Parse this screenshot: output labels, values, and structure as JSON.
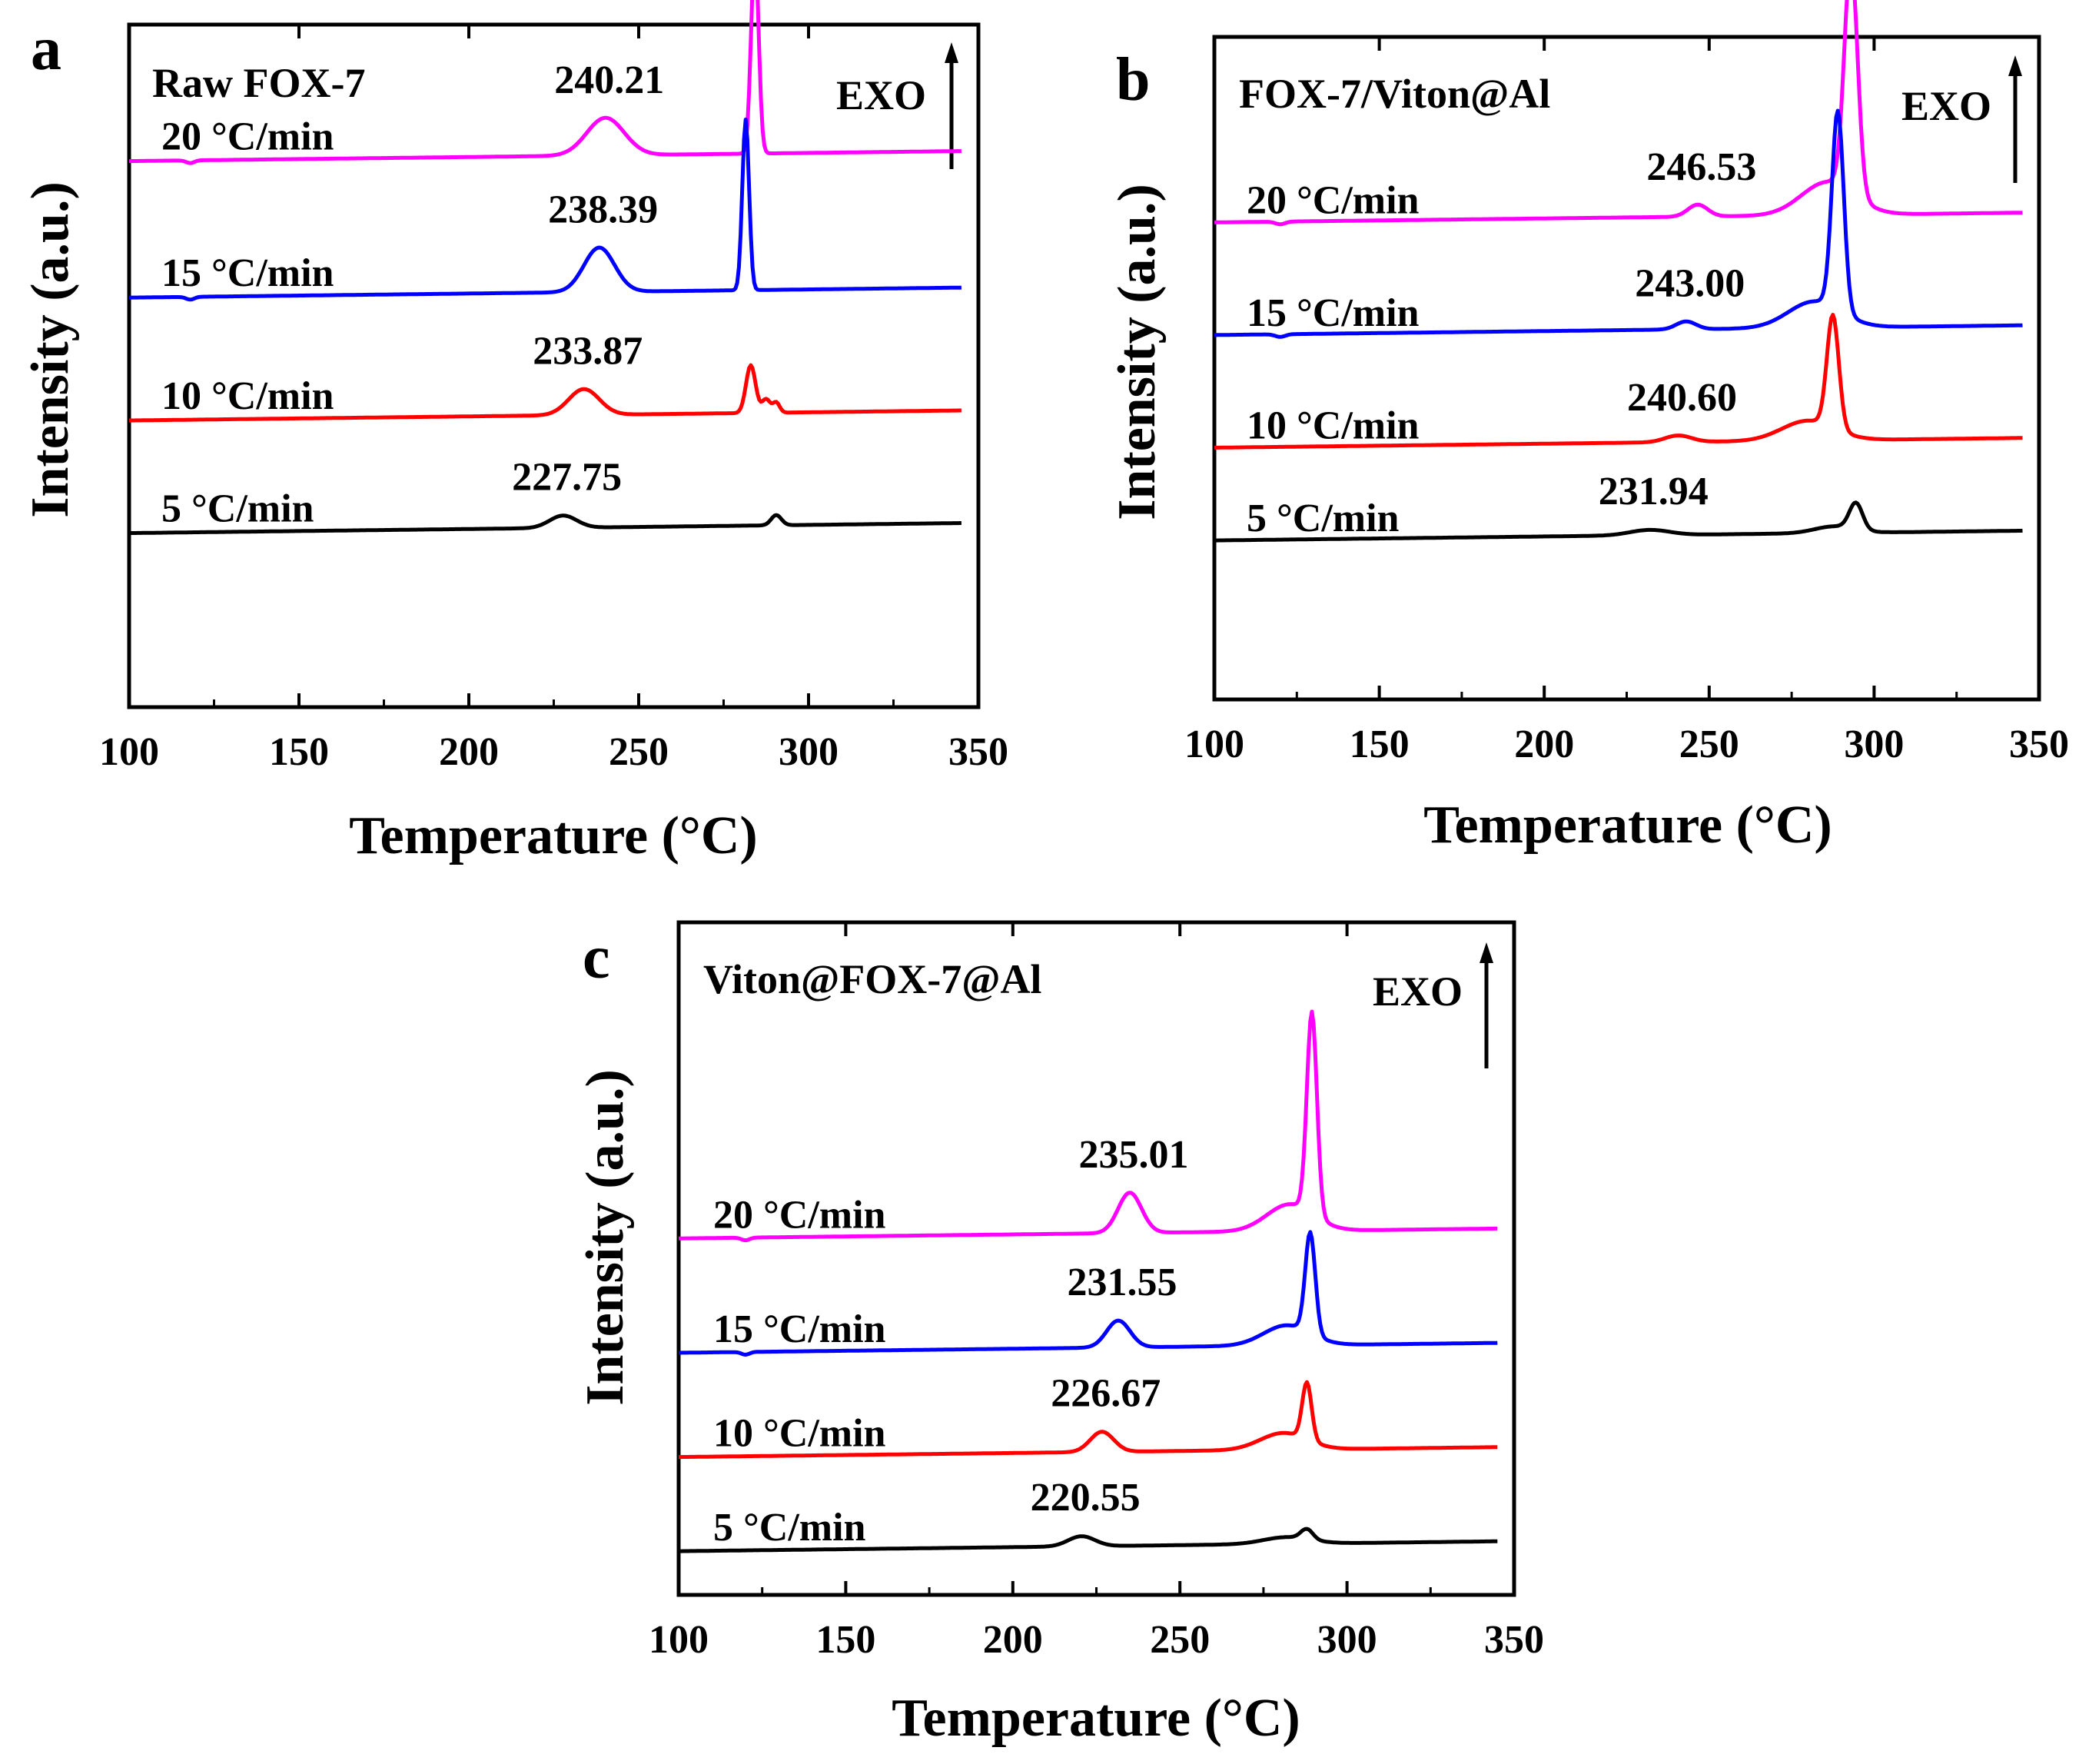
{
  "figure": {
    "exo_label": "EXO",
    "xlabel": "Temperature (°C)",
    "ylabel": "Intensity (a.u.)",
    "series_colors": {
      "5": "#000000",
      "10": "#ff0000",
      "15": "#0000ff",
      "20": "#ff00ff"
    }
  },
  "chart_data": [
    {
      "type": "line",
      "panel": "a",
      "title": "Raw FOX-7",
      "xlabel": "Temperature (°C)",
      "ylabel": "Intensity (a.u.)",
      "xlim": [
        100,
        350
      ],
      "xticks": [
        "100",
        "150",
        "200",
        "250",
        "300",
        "350"
      ],
      "series": [
        {
          "rate_key": "20",
          "name": "20 °C/min",
          "peak_label": "240.21",
          "peak_temp": 240.21,
          "baseline": 0.8,
          "features": [
            [
              118,
              -0.004,
              1.2
            ],
            [
              240.21,
              0.055,
              5.5
            ],
            [
              284.2,
              0.3,
              1.1
            ]
          ]
        },
        {
          "rate_key": "15",
          "name": "15 °C/min",
          "peak_label": "238.39",
          "peak_temp": 238.39,
          "baseline": 0.6,
          "features": [
            [
              118,
              -0.004,
              1.2
            ],
            [
              238.39,
              0.065,
              4.5
            ],
            [
              281.5,
              0.25,
              1.0
            ]
          ]
        },
        {
          "rate_key": "10",
          "name": "10 °C/min",
          "peak_label": "233.87",
          "peak_temp": 233.87,
          "baseline": 0.42,
          "features": [
            [
              233.87,
              0.038,
              4.5
            ],
            [
              283.0,
              0.07,
              1.4
            ],
            [
              287.5,
              0.02,
              1.2
            ],
            [
              290.5,
              0.015,
              1.0
            ]
          ]
        },
        {
          "rate_key": "5",
          "name": "5 °C/min",
          "peak_label": "227.75",
          "peak_temp": 227.75,
          "baseline": 0.255,
          "features": [
            [
              227.75,
              0.018,
              4.0
            ],
            [
              290.5,
              0.015,
              1.5
            ]
          ]
        }
      ]
    },
    {
      "type": "line",
      "panel": "b",
      "title": "FOX-7/Viton@Al",
      "xlabel": "Temperature (°C)",
      "ylabel": "Intensity (a.u.)",
      "xlim": [
        100,
        350
      ],
      "xticks": [
        "100",
        "150",
        "200",
        "250",
        "300",
        "350"
      ],
      "series": [
        {
          "rate_key": "20",
          "name": "20 °C/min",
          "peak_label": "246.53",
          "peak_temp": 246.53,
          "baseline": 0.72,
          "features": [
            [
              120,
              -0.004,
              1.5
            ],
            [
              246.53,
              0.018,
              3.0
            ],
            [
              293.0,
              0.35,
              2.0
            ],
            [
              286,
              0.05,
              8.0
            ]
          ]
        },
        {
          "rate_key": "15",
          "name": "15 °C/min",
          "peak_label": "243.00",
          "peak_temp": 243.0,
          "baseline": 0.55,
          "features": [
            [
              120,
              -0.004,
              1.5
            ],
            [
              243.0,
              0.012,
              3.0
            ],
            [
              289.0,
              0.3,
              1.8
            ],
            [
              282,
              0.04,
              8.0
            ]
          ]
        },
        {
          "rate_key": "10",
          "name": "10 °C/min",
          "peak_label": "240.60",
          "peak_temp": 240.6,
          "baseline": 0.38,
          "features": [
            [
              240.6,
              0.01,
              4.0
            ],
            [
              287.5,
              0.17,
              1.8
            ],
            [
              280,
              0.03,
              8.0
            ]
          ]
        },
        {
          "rate_key": "5",
          "name": "5 °C/min",
          "peak_label": "231.94",
          "peak_temp": 231.94,
          "baseline": 0.24,
          "features": [
            [
              231.94,
              0.008,
              6.0
            ],
            [
              294.5,
              0.04,
              2.0
            ],
            [
              288,
              0.01,
              6.0
            ]
          ]
        }
      ]
    },
    {
      "type": "line",
      "panel": "c",
      "title": "Viton@FOX-7@Al",
      "xlabel": "Temperature (°C)",
      "ylabel": "Intensity (a.u.)",
      "xlim": [
        100,
        350
      ],
      "xticks": [
        "100",
        "150",
        "200",
        "250",
        "300",
        "350"
      ],
      "series": [
        {
          "rate_key": "20",
          "name": "20 °C/min",
          "peak_label": "235.01",
          "peak_temp": 235.01,
          "baseline": 0.53,
          "features": [
            [
              120,
              -0.004,
              1.2
            ],
            [
              235.01,
              0.06,
              3.5
            ],
            [
              289.5,
              0.3,
              1.5
            ],
            [
              283,
              0.04,
              7.0
            ]
          ]
        },
        {
          "rate_key": "15",
          "name": "15 °C/min",
          "peak_label": "231.55",
          "peak_temp": 231.55,
          "baseline": 0.36,
          "features": [
            [
              120,
              -0.004,
              1.2
            ],
            [
              231.55,
              0.04,
              3.5
            ],
            [
              289.0,
              0.15,
              1.5
            ],
            [
              282,
              0.03,
              7.0
            ]
          ]
        },
        {
          "rate_key": "10",
          "name": "10 °C/min",
          "peak_label": "226.67",
          "peak_temp": 226.67,
          "baseline": 0.205,
          "features": [
            [
              226.67,
              0.03,
              3.5
            ],
            [
              288.0,
              0.085,
              1.4
            ],
            [
              281,
              0.025,
              7.0
            ]
          ]
        },
        {
          "rate_key": "5",
          "name": "5 °C/min",
          "peak_label": "220.55",
          "peak_temp": 220.55,
          "baseline": 0.065,
          "features": [
            [
              220.55,
              0.015,
              4.0
            ],
            [
              288.0,
              0.015,
              1.8
            ],
            [
              282,
              0.01,
              7.0
            ]
          ]
        }
      ]
    }
  ]
}
